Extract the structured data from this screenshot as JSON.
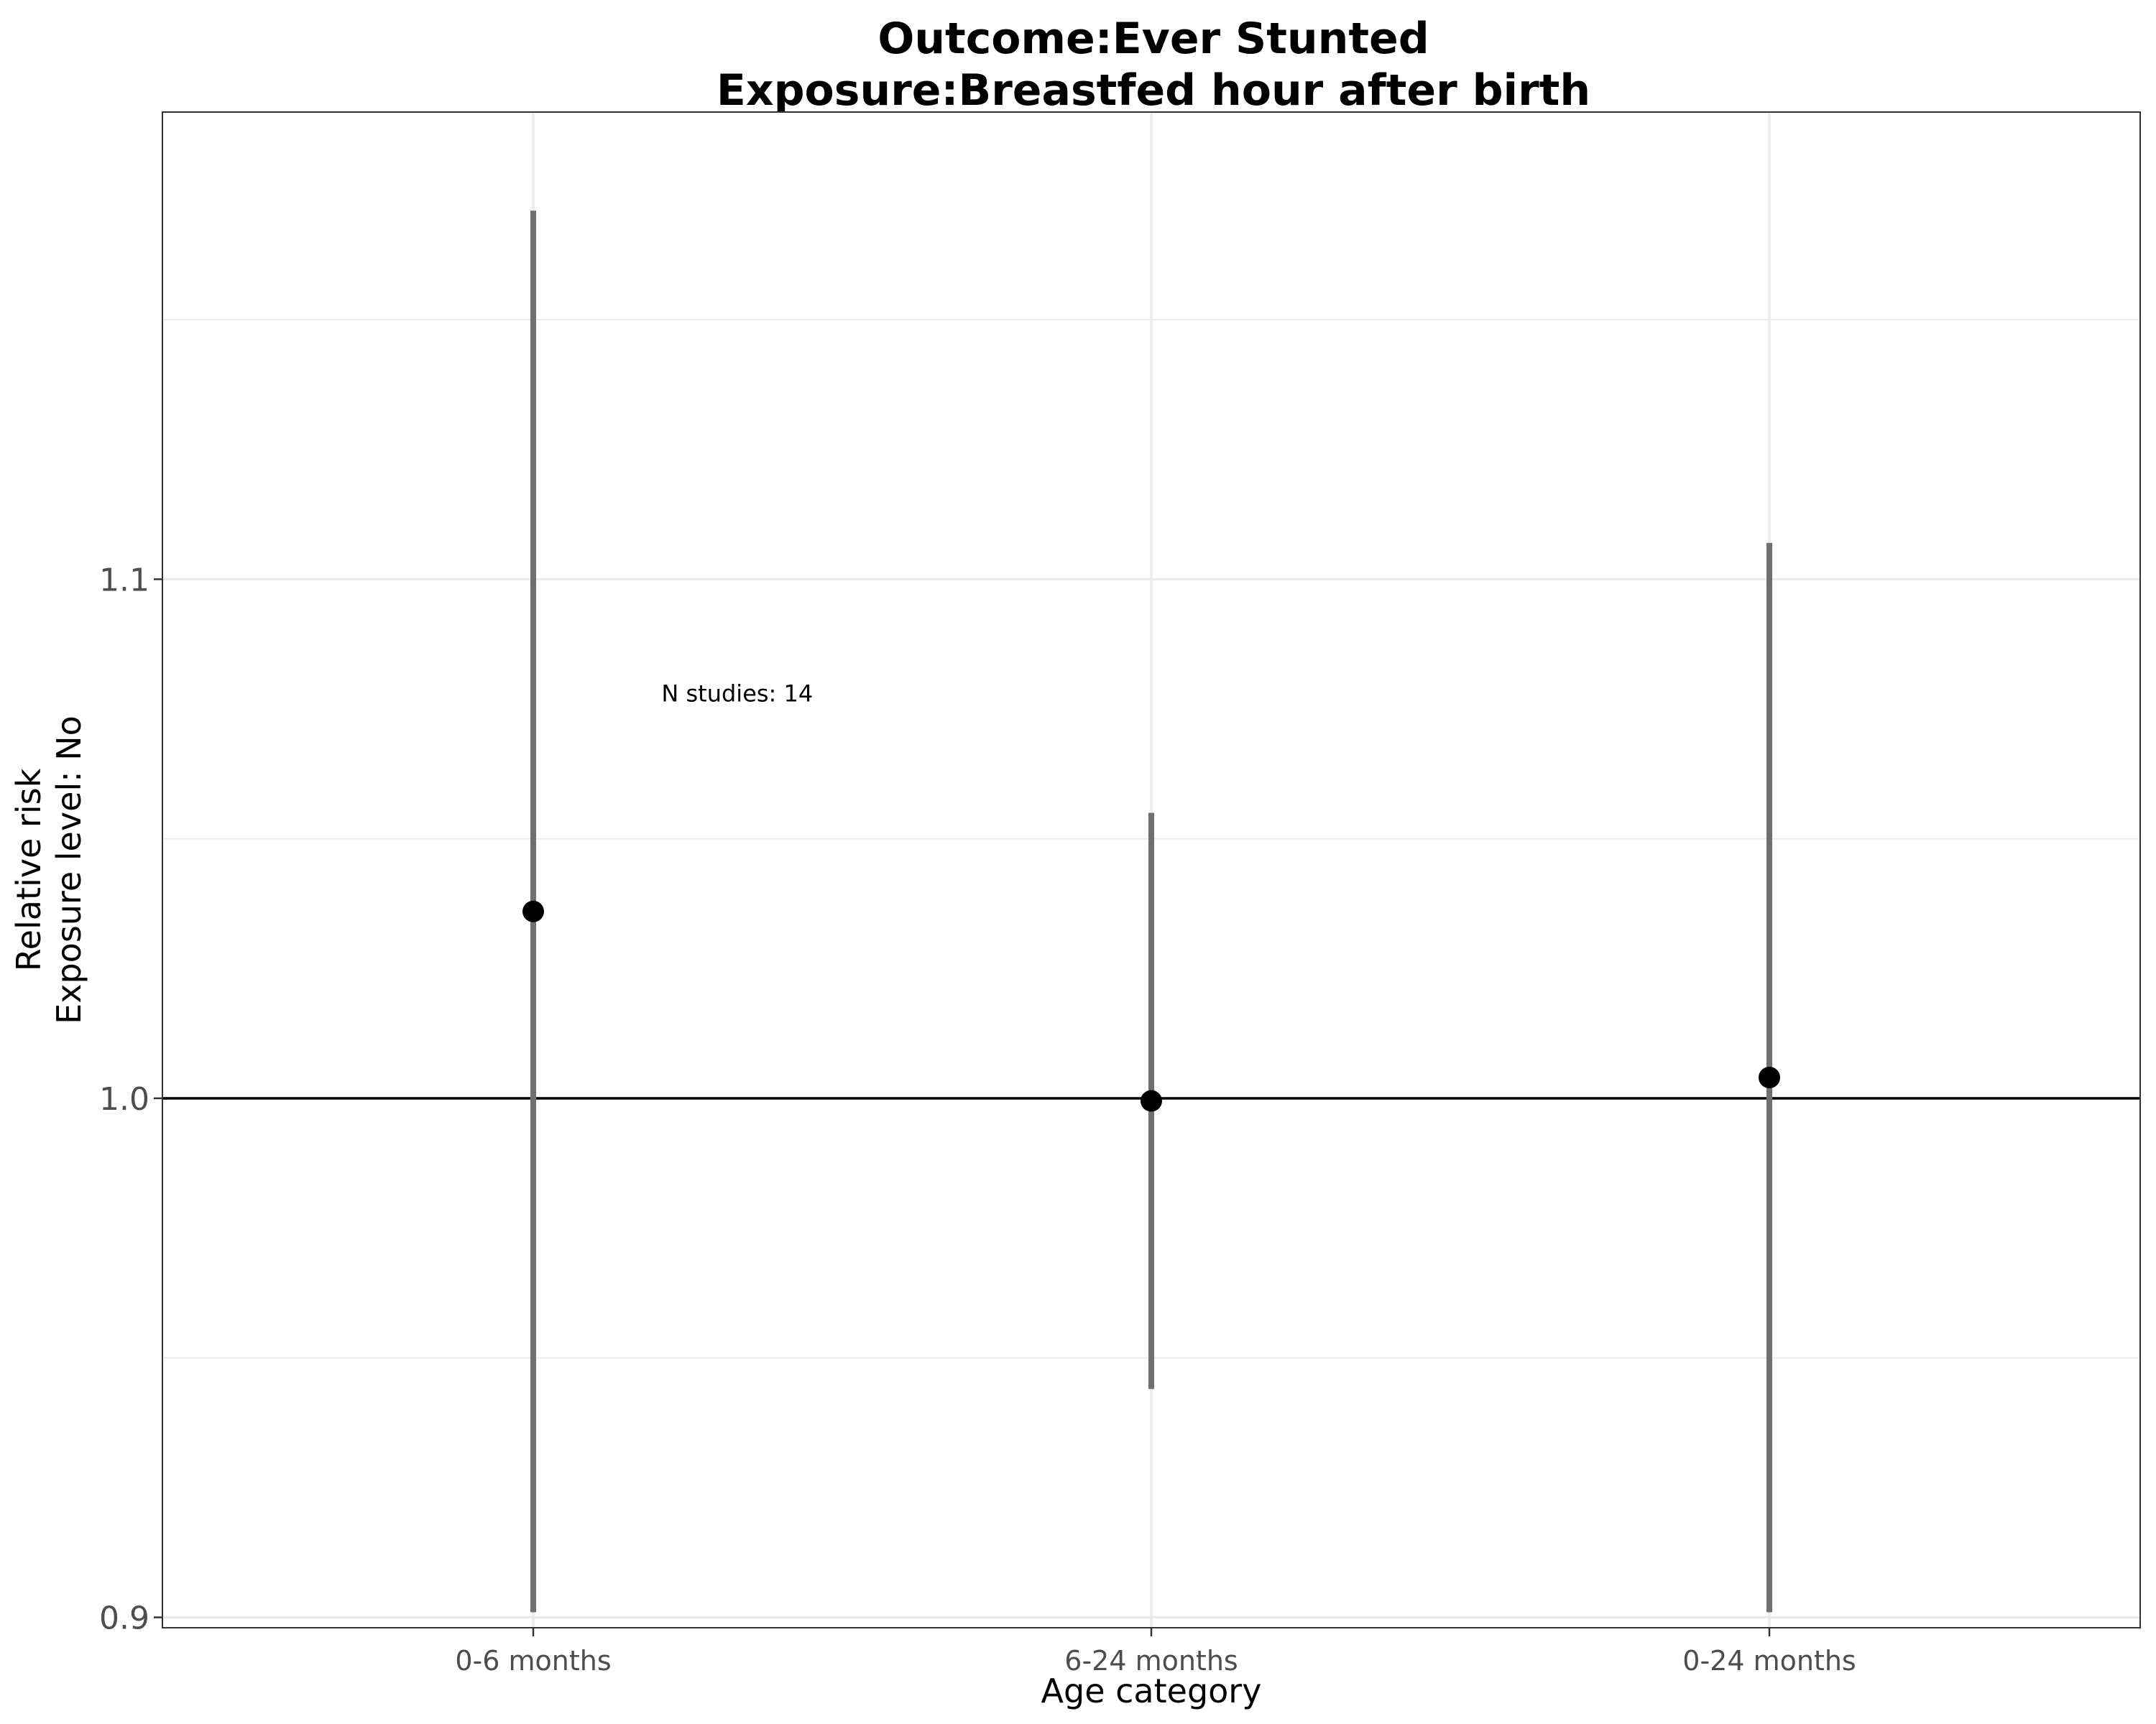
{
  "chart_data": {
    "type": "scatter",
    "title": [
      "Outcome:Ever Stunted",
      "Exposure:Breastfed hour after birth"
    ],
    "xlabel": "Age category",
    "ylabel": [
      "Relative risk",
      "Exposure level: No"
    ],
    "categories": [
      "0-6 months",
      "6-24 months",
      "0-24 months"
    ],
    "points": [
      {
        "category": "0-6 months",
        "estimate": 1.036,
        "ci_lower": 0.901,
        "ci_upper": 1.171
      },
      {
        "category": "6-24 months",
        "estimate": 0.9995,
        "ci_lower": 0.944,
        "ci_upper": 1.055
      },
      {
        "category": "0-24 months",
        "estimate": 1.004,
        "ci_lower": 0.901,
        "ci_upper": 1.107
      }
    ],
    "reference_line": 1.0,
    "ylim": [
      0.898,
      1.19
    ],
    "yticks": [
      {
        "value": 0.9,
        "label": "0.9"
      },
      {
        "value": 1.0,
        "label": "1.0"
      },
      {
        "value": 1.1,
        "label": "1.1"
      }
    ],
    "annotation": {
      "text": "N studies: 14",
      "category_pos": 1.33,
      "y": 1.078
    },
    "grid": true,
    "legend": "none",
    "colors": {
      "point": "#000000",
      "errorbar": "#707070",
      "grid": "#ebebeb",
      "panel_border": "#333333",
      "reference_line": "#000000"
    }
  }
}
